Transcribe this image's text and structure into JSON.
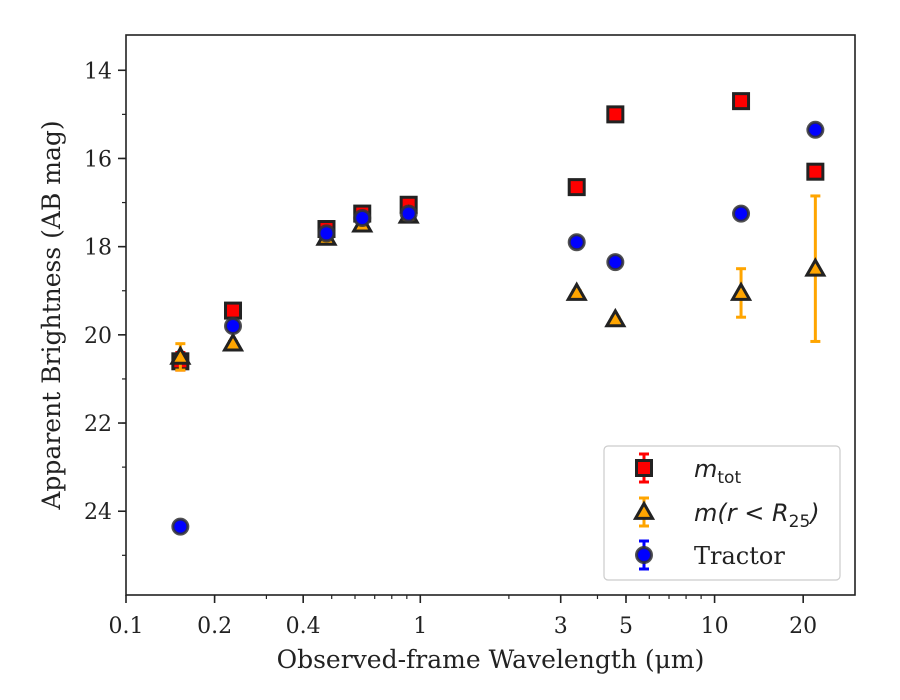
{
  "chart_data": {
    "type": "scatter",
    "title": "",
    "xlabel": "Observed-frame Wavelength (μm)",
    "ylabel": "Apparent Brightness (AB mag)",
    "xscale": "log",
    "xlim": [
      0.1,
      30
    ],
    "ylim": [
      25.9,
      13.2
    ],
    "y_inverted": true,
    "grid": false,
    "legend_position": "lower-right",
    "x_ticks": [
      {
        "value": 0.1,
        "label": "0.1"
      },
      {
        "value": 0.2,
        "label": "0.2"
      },
      {
        "value": 0.4,
        "label": "0.4"
      },
      {
        "value": 1,
        "label": "1"
      },
      {
        "value": 3,
        "label": "3"
      },
      {
        "value": 5,
        "label": "5"
      },
      {
        "value": 10,
        "label": "10"
      },
      {
        "value": 20,
        "label": "20"
      }
    ],
    "y_ticks": [
      {
        "value": 14,
        "label": "14"
      },
      {
        "value": 16,
        "label": "16"
      },
      {
        "value": 18,
        "label": "18"
      },
      {
        "value": 20,
        "label": "20"
      },
      {
        "value": 22,
        "label": "22"
      },
      {
        "value": 24,
        "label": "24"
      }
    ],
    "series": [
      {
        "name": "m_tot",
        "legend_label": {
          "base": "m",
          "sub": "tot",
          "rest": ""
        },
        "marker": "square",
        "color": "#ff0000",
        "ecolor": "#ff0000",
        "edgecolor": "#222222",
        "points": [
          {
            "x": 0.153,
            "y": 20.6,
            "yerr": 0.2
          },
          {
            "x": 0.231,
            "y": 19.45,
            "yerr": 0.05
          },
          {
            "x": 0.48,
            "y": 17.6,
            "yerr": 0.1
          },
          {
            "x": 0.635,
            "y": 17.25,
            "yerr": 0.1
          },
          {
            "x": 0.913,
            "y": 17.05,
            "yerr": 0.1
          },
          {
            "x": 3.4,
            "y": 16.65,
            "yerr": 0.05
          },
          {
            "x": 4.6,
            "y": 15.0,
            "yerr": 0.05
          },
          {
            "x": 12.3,
            "y": 14.7,
            "yerr": 0.05
          },
          {
            "x": 22.0,
            "y": 16.3,
            "yerr": 0.05
          }
        ]
      },
      {
        "name": "m(r < R_25)",
        "legend_label": {
          "base": "m(r < R",
          "sub": "25",
          "rest": ")"
        },
        "marker": "triangle",
        "color": "#ffa500",
        "ecolor": "#ffa500",
        "edgecolor": "#222222",
        "points": [
          {
            "x": 0.153,
            "y": 20.5,
            "yerr": 0.3
          },
          {
            "x": 0.231,
            "y": 20.2,
            "yerr": 0.05
          },
          {
            "x": 0.48,
            "y": 17.8,
            "yerr": 0.05
          },
          {
            "x": 0.635,
            "y": 17.5,
            "yerr": 0.05
          },
          {
            "x": 0.913,
            "y": 17.3,
            "yerr": 0.05
          },
          {
            "x": 3.4,
            "y": 19.05,
            "yerr": 0.05
          },
          {
            "x": 4.6,
            "y": 19.65,
            "yerr": 0.05
          },
          {
            "x": 12.3,
            "y": 19.05,
            "yerr": 0.55
          },
          {
            "x": 22.0,
            "y": 18.5,
            "yerr": 1.65
          }
        ]
      },
      {
        "name": "Tractor",
        "legend_label": {
          "base": "Tractor",
          "sub": "",
          "rest": ""
        },
        "marker": "circle",
        "color": "#0000ff",
        "ecolor": "#0000ff",
        "edgecolor": "#333333",
        "points": [
          {
            "x": 0.153,
            "y": 24.35,
            "yerr": 0.05
          },
          {
            "x": 0.231,
            "y": 19.8,
            "yerr": 0.1
          },
          {
            "x": 0.48,
            "y": 17.7,
            "yerr": 0.05
          },
          {
            "x": 0.635,
            "y": 17.35,
            "yerr": 0.05
          },
          {
            "x": 0.913,
            "y": 17.25,
            "yerr": 0.05
          },
          {
            "x": 3.4,
            "y": 17.9,
            "yerr": 0.05
          },
          {
            "x": 4.6,
            "y": 18.35,
            "yerr": 0.05
          },
          {
            "x": 12.3,
            "y": 17.25,
            "yerr": 0.05
          },
          {
            "x": 22.0,
            "y": 15.35,
            "yerr": 0.0
          }
        ]
      }
    ]
  }
}
